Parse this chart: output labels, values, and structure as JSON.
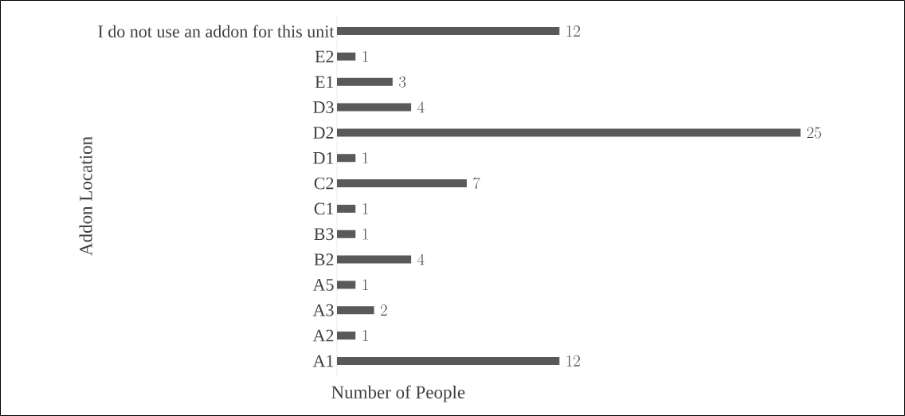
{
  "chart_data": {
    "type": "bar",
    "orientation": "horizontal",
    "xlabel": "Number of People",
    "ylabel": "Addon Location",
    "categories": [
      "I do not use an addon for this unit",
      "E2",
      "E1",
      "D3",
      "D2",
      "D1",
      "C2",
      "C1",
      "B3",
      "B2",
      "A5",
      "A3",
      "A2",
      "A1"
    ],
    "values": [
      12,
      1,
      3,
      4,
      25,
      1,
      7,
      1,
      1,
      4,
      1,
      2,
      1,
      12
    ],
    "color": "#595959",
    "data_labels": true
  }
}
